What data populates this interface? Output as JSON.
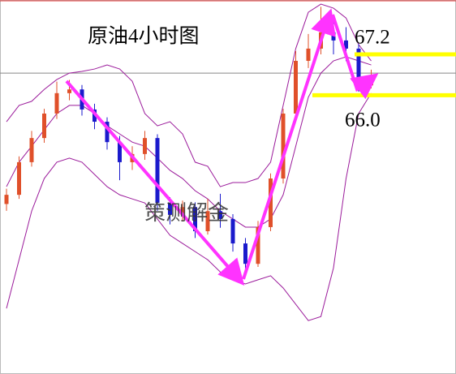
{
  "chart_data": {
    "type": "candlestick",
    "title": "原油4小时图",
    "watermark": "策测解金",
    "ylim": [
      57.8,
      68.8
    ],
    "up_color": "#e0502a",
    "down_color": "#1a1acc",
    "open": [
      62.8,
      63.07,
      64.03,
      64.74,
      65.46,
      66.06,
      66.17,
      65.58,
      65.22,
      64.62,
      64.03,
      64.27,
      64.74,
      62.83,
      62.48,
      62.71,
      62.0,
      62.59,
      62.36,
      61.64,
      61.04,
      62.12,
      63.55,
      65.46,
      67.01,
      67.37,
      67.85,
      67.61,
      67.37,
      66.29
    ],
    "high": [
      63.25,
      64.2,
      64.95,
      65.6,
      66.4,
      66.45,
      66.3,
      65.75,
      65.35,
      64.8,
      64.5,
      64.95,
      64.85,
      63.0,
      62.9,
      62.85,
      62.95,
      63.1,
      62.5,
      61.8,
      62.3,
      63.7,
      65.6,
      67.3,
      67.8,
      68.6,
      68.2,
      68.0,
      67.5,
      66.75
    ],
    "low": [
      62.6,
      62.95,
      63.9,
      64.6,
      65.3,
      65.85,
      65.4,
      65.0,
      64.4,
      63.5,
      63.8,
      64.1,
      62.6,
      62.2,
      62.3,
      61.8,
      61.9,
      62.1,
      61.4,
      60.85,
      60.95,
      62.0,
      63.4,
      65.3,
      66.8,
      67.2,
      67.2,
      67.0,
      66.1,
      66.2
    ],
    "close": [
      63.07,
      64.03,
      64.74,
      65.46,
      66.06,
      66.17,
      65.58,
      65.22,
      64.62,
      64.03,
      64.27,
      64.74,
      62.83,
      62.48,
      62.71,
      62.0,
      62.59,
      62.36,
      61.64,
      61.04,
      62.12,
      63.55,
      65.46,
      67.01,
      67.37,
      67.85,
      67.61,
      67.37,
      66.29,
      66.53
    ],
    "bands": [
      {
        "color": "#9b1b9b",
        "values": [
          65.22,
          65.7,
          65.82,
          66.17,
          66.46,
          66.65,
          66.7,
          66.77,
          66.89,
          66.77,
          66.41,
          65.46,
          65.1,
          65.22,
          64.86,
          64.03,
          63.91,
          63.31,
          63.43,
          63.43,
          63.55,
          64.03,
          65.7,
          67.37,
          68.44,
          68.68,
          68.56,
          68.27,
          67.49,
          67.01
        ]
      },
      {
        "color": "#9b1b9b",
        "values": [
          63.31,
          64.03,
          64.5,
          64.98,
          65.46,
          65.7,
          65.7,
          65.46,
          65.1,
          64.86,
          64.62,
          64.5,
          64.15,
          63.79,
          63.55,
          63.19,
          62.95,
          62.59,
          62.36,
          62.12,
          62.12,
          62.36,
          63.07,
          64.5,
          65.94,
          66.65,
          67.01,
          67.13,
          67.01,
          66.89
        ]
      },
      {
        "color": "#9b1b9b",
        "values": [
          59.73,
          61.16,
          62.59,
          63.55,
          64.03,
          64.15,
          64.03,
          63.67,
          63.31,
          63.07,
          62.95,
          62.83,
          62.36,
          61.88,
          61.64,
          61.4,
          61.16,
          60.8,
          60.57,
          60.45,
          60.57,
          60.69,
          60.33,
          59.85,
          59.37,
          59.49,
          60.92,
          63.55,
          65.46,
          66.06
        ]
      }
    ],
    "price_line": 66.65,
    "level_color": "#ffff00",
    "levels": [
      67.2,
      {
        "value": 66.0,
        "label": "66.0"
      }
    ]
  }
}
